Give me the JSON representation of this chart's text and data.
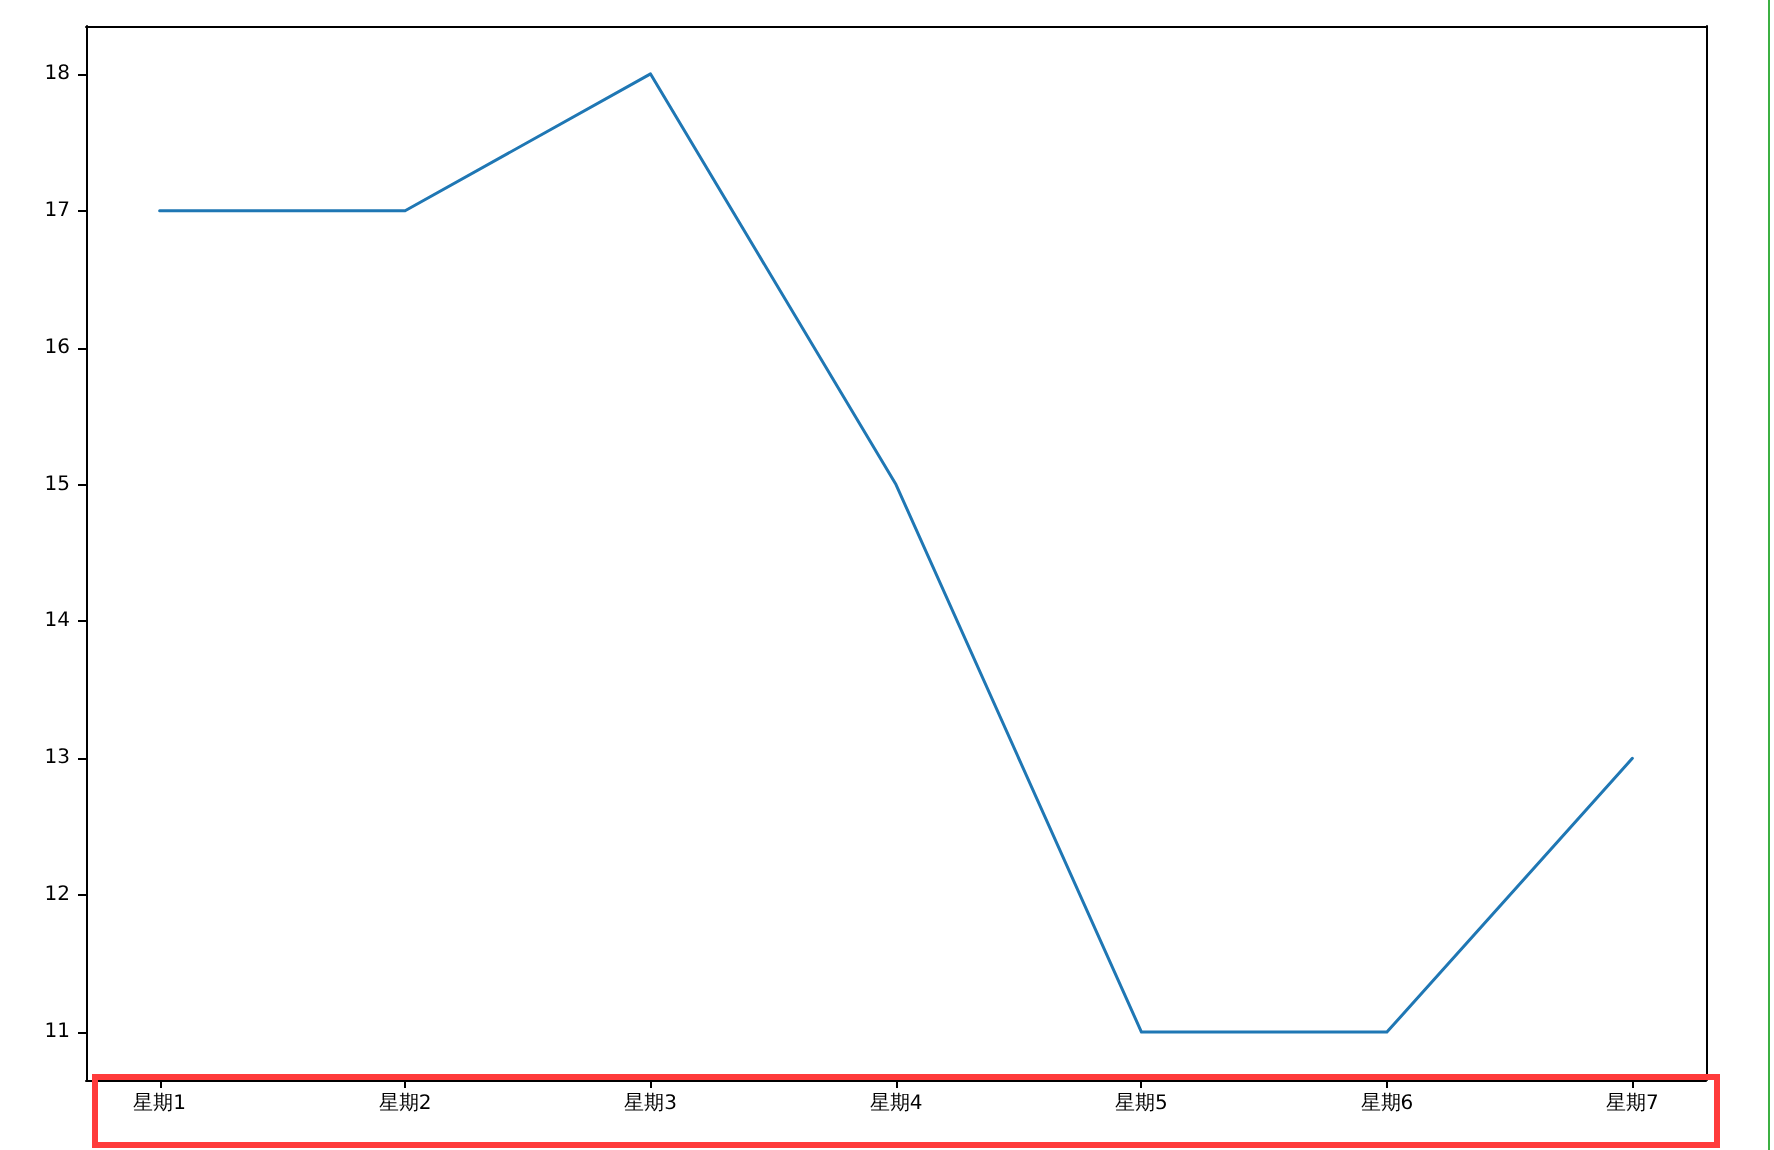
{
  "chart_data": {
    "type": "line",
    "categories": [
      "星期1",
      "星期2",
      "星期3",
      "星期4",
      "星期5",
      "星期6",
      "星期7"
    ],
    "series": [
      {
        "color": "#1f77b4",
        "values": [
          17,
          17,
          18,
          15,
          11,
          11,
          13
        ]
      }
    ],
    "ylim": [
      10.65,
      18.35
    ],
    "yticks": [
      11,
      12,
      13,
      14,
      15,
      16,
      17,
      18
    ],
    "grid": false,
    "marker": "none",
    "line_style": "solid"
  }
}
